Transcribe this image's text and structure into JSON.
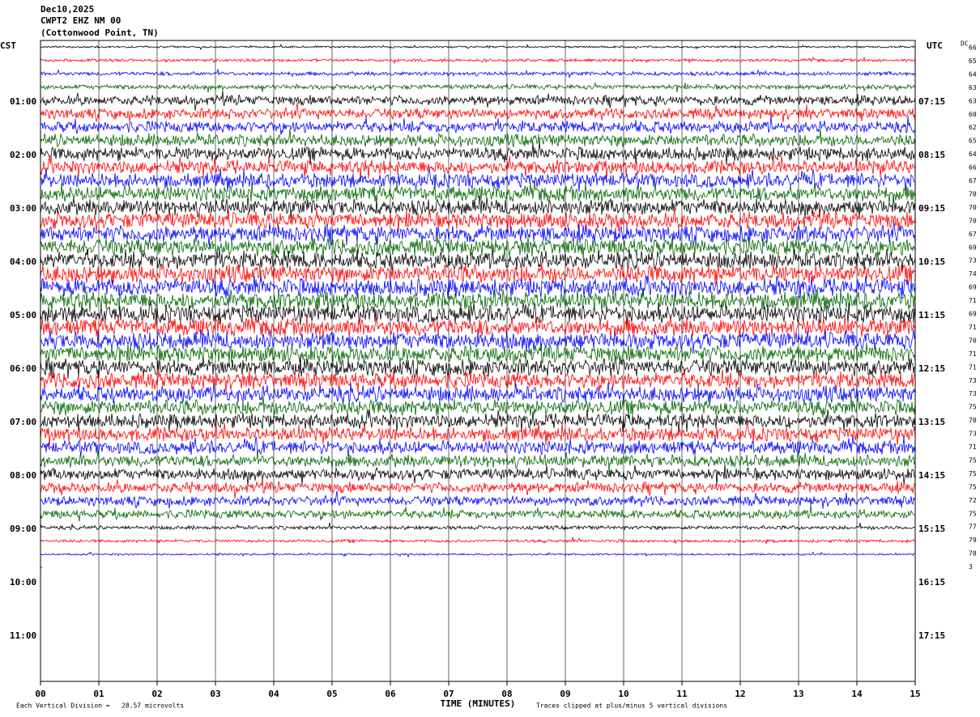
{
  "header": {
    "date": "Dec10,2025",
    "station": "CWPT2 EHZ NM 00",
    "location": "(Cottonwood Point, TN)"
  },
  "left_axis": {
    "title": "CST",
    "labels": [
      "01:00",
      "02:00",
      "03:00",
      "04:00",
      "05:00",
      "06:00",
      "07:00",
      "08:00",
      "09:00",
      "10:00",
      "11:00"
    ]
  },
  "right_axis": {
    "title": "UTC",
    "labels": [
      "07:15",
      "08:15",
      "09:15",
      "10:15",
      "11:15",
      "12:15",
      "13:15",
      "14:15",
      "15:15",
      "16:15",
      "17:15"
    ]
  },
  "dc_offsets": {
    "title": "DC",
    "values": [
      66,
      65,
      64,
      63,
      63,
      60,
      62,
      65,
      64,
      66,
      67,
      70,
      70,
      70,
      67,
      69,
      73,
      74,
      69,
      71,
      69,
      71,
      70,
      71,
      71,
      73,
      73,
      75,
      70,
      73,
      71,
      75,
      75,
      75,
      72,
      75,
      77,
      79,
      78,
      3
    ]
  },
  "x_axis": {
    "title": "TIME (MINUTES)",
    "ticks": [
      "00",
      "01",
      "02",
      "03",
      "04",
      "05",
      "06",
      "07",
      "08",
      "09",
      "10",
      "11",
      "12",
      "13",
      "14",
      "15"
    ]
  },
  "footer": {
    "scale": "Each Vertical Division =   28.57 microvolts",
    "clipping": "Traces clipped at plus/minus 5 vertical divisions"
  }
}
